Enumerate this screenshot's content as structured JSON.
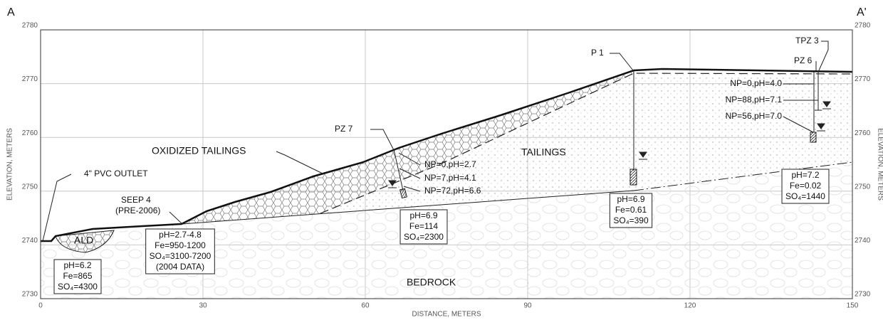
{
  "header": {
    "left_label": "A",
    "right_label": "A'"
  },
  "axes": {
    "x_label": "DISTANCE, METERS",
    "y_label": "ELEVATION, METERS",
    "xticks": [
      0,
      30,
      60,
      90,
      120,
      150
    ],
    "yticks": [
      2730,
      2740,
      2750,
      2760,
      2770,
      2780
    ]
  },
  "units": {
    "oxidized": "OXIDIZED TAILINGS",
    "tailings": "TAILINGS",
    "bedrock": "BEDROCK",
    "ald": "ALD"
  },
  "callouts": {
    "outlet": "4\" PVC OUTLET",
    "seep": "SEEP 4",
    "seep_note": "(PRE-2006)",
    "pz7": "PZ 7",
    "p1": "P 1",
    "tpz3": "TPZ 3",
    "pz6": "PZ 6"
  },
  "readings": {
    "pz7": [
      "NP=0,pH=2.7",
      "NP=7,pH=4.1",
      "NP=72,pH=6.6"
    ],
    "tpz3": [
      "NP=0,pH=4.0",
      "NP=88,pH=7.1",
      "NP=56,pH=7.0"
    ]
  },
  "boxes": [
    [
      "pH=6.2",
      "Fe=865",
      "SO₄=4300"
    ],
    [
      "pH=2.7-4.8",
      "Fe=950-1200",
      "SO₄=3100-7200",
      "(2004 DATA)"
    ],
    [
      "pH=6.9",
      "Fe=114",
      "SO₄=2300"
    ],
    [
      "pH=6.9",
      "Fe=0.61",
      "SO₄=390"
    ],
    [
      "pH=7.2",
      "Fe=0.02",
      "SO₄=1440"
    ]
  ]
}
